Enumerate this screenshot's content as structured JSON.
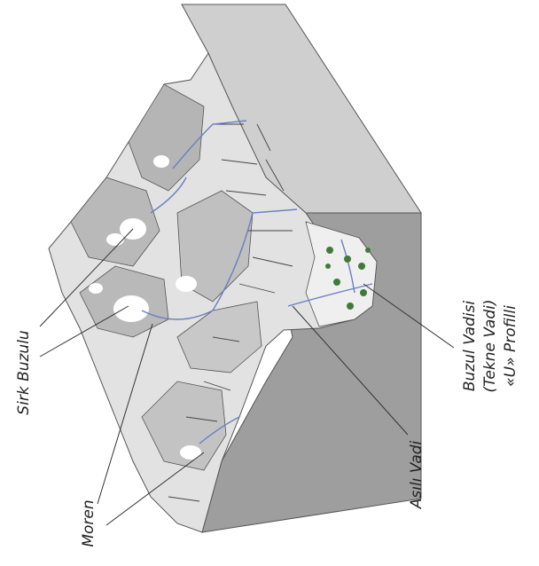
{
  "labels": {
    "cirque_glacier": "Sirk Buzulu",
    "moraine": "Moren",
    "hanging_valley": "Asılı Vadi",
    "glacial_valley": [
      "Buzul Vadisi",
      "(Tekne Vadi)",
      "«U» Profilli"
    ]
  }
}
